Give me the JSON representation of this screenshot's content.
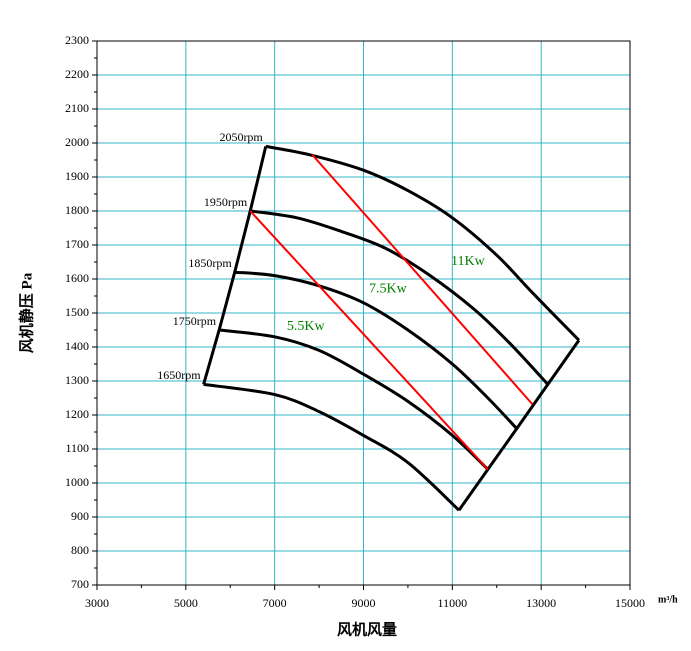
{
  "chart_data": {
    "type": "line",
    "x_label": "风机风量",
    "y_label": "风机静压 Pa",
    "x_unit": "m³/h",
    "xlim": [
      3000,
      15000
    ],
    "xticks": [
      3000,
      5000,
      7000,
      9000,
      11000,
      13000,
      15000
    ],
    "ylim": [
      700,
      2300
    ],
    "yticks": [
      700,
      800,
      900,
      1000,
      1100,
      1200,
      1300,
      1400,
      1500,
      1600,
      1700,
      1800,
      1900,
      2000,
      2100,
      2200,
      2300
    ],
    "grid": true,
    "series": [
      {
        "name": "2050rpm",
        "color": "#000000",
        "x": [
          6800,
          7800,
          9000,
          10000,
          11000,
          12000,
          12800,
          13850
        ],
        "values": [
          1990,
          1965,
          1920,
          1860,
          1780,
          1670,
          1560,
          1420
        ]
      },
      {
        "name": "1950rpm",
        "color": "#000000",
        "x": [
          6450,
          7500,
          8500,
          9500,
          10500,
          11500,
          12300,
          13150
        ],
        "values": [
          1800,
          1780,
          1740,
          1690,
          1610,
          1510,
          1410,
          1290
        ]
      },
      {
        "name": "1850rpm",
        "color": "#000000",
        "x": [
          6100,
          7000,
          8000,
          9000,
          10000,
          11000,
          11800,
          12450
        ],
        "values": [
          1620,
          1610,
          1580,
          1530,
          1450,
          1350,
          1250,
          1160
        ]
      },
      {
        "name": "1750rpm",
        "color": "#000000",
        "x": [
          5750,
          7000,
          8000,
          9000,
          10000,
          11000,
          11800
        ],
        "values": [
          1450,
          1430,
          1390,
          1320,
          1240,
          1140,
          1040
        ]
      },
      {
        "name": "1650rpm",
        "color": "#000000",
        "x": [
          5400,
          7000,
          8000,
          9000,
          10000,
          11150
        ],
        "values": [
          1290,
          1260,
          1210,
          1140,
          1060,
          920
        ]
      }
    ],
    "power_lines": [
      {
        "color": "#ff0000",
        "x": [
          6450,
          11800
        ],
        "values": [
          1800,
          1040
        ]
      },
      {
        "color": "#ff0000",
        "x": [
          7850,
          12800
        ],
        "values": [
          1965,
          1232
        ]
      }
    ],
    "annotations": [
      {
        "text": "5.5Kw",
        "color": "#008000",
        "x": 7700,
        "y": 1460
      },
      {
        "text": "7.5Kw",
        "color": "#008000",
        "x": 9550,
        "y": 1570
      },
      {
        "text": "11Kw",
        "color": "#008000",
        "x": 11350,
        "y": 1650
      }
    ]
  }
}
